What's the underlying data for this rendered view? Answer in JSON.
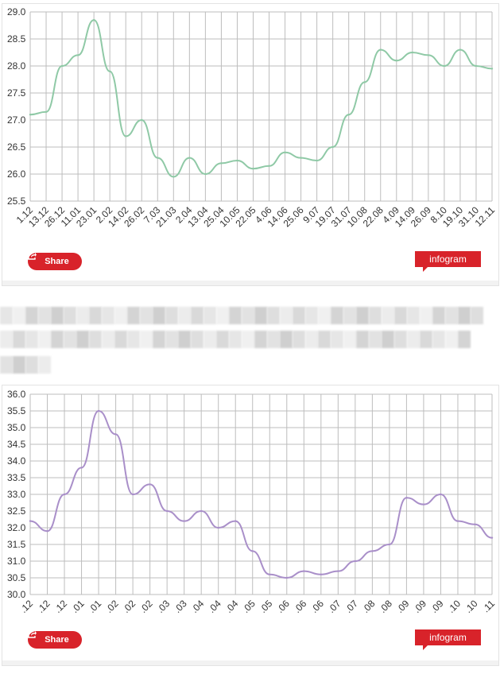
{
  "charts": [
    {
      "type": "line",
      "color": "#8fc9a6",
      "ylim": [
        25.5,
        29.0
      ],
      "yticks": [
        "29.0",
        "28.5",
        "28.0",
        "27.5",
        "27.0",
        "26.5",
        "26.0",
        "25.5"
      ],
      "categories": [
        "1.12",
        "13.12",
        "26.12",
        "11.01",
        "23.01",
        "2.02",
        "14.02",
        "26.02",
        "7.03",
        "21.03",
        "2.04",
        "13.04",
        "25.04",
        "10.05",
        "22.05",
        "4.06",
        "14.06",
        "25.06",
        "9.07",
        "19.07",
        "31.07",
        "10.08",
        "22.08",
        "4.09",
        "14.09",
        "26.09",
        "8.10",
        "19.10",
        "31.10",
        "12.11"
      ],
      "values": [
        27.1,
        27.15,
        28.0,
        28.2,
        28.85,
        27.9,
        26.7,
        27.0,
        26.3,
        25.95,
        26.3,
        26.0,
        26.2,
        26.25,
        26.1,
        26.15,
        26.4,
        26.3,
        26.25,
        26.5,
        27.1,
        27.7,
        28.3,
        28.1,
        28.25,
        28.2,
        28.0,
        28.3,
        28.0,
        27.95
      ],
      "share_label": "Share",
      "brand_label": "infogram"
    },
    {
      "type": "line",
      "color": "#a98fc9",
      "ylim": [
        30.0,
        36.0
      ],
      "yticks": [
        "36.0",
        "35.5",
        "35.0",
        "34.5",
        "34.0",
        "33.5",
        "33.0",
        "32.5",
        "32.0",
        "31.5",
        "31.0",
        "30.5",
        "30.0"
      ],
      "categories": [
        ".12",
        ".12",
        ".12",
        ".01",
        ".01",
        ".02",
        ".02",
        ".02",
        ".03",
        ".03",
        ".04",
        ".04",
        ".04",
        ".05",
        ".05",
        ".06",
        ".06",
        ".06",
        ".07",
        ".07",
        ".08",
        ".08",
        ".09",
        ".09",
        ".09",
        ".10",
        ".10",
        ".11"
      ],
      "values": [
        32.2,
        31.9,
        33.0,
        33.8,
        35.5,
        34.8,
        33.0,
        33.3,
        32.5,
        32.2,
        32.5,
        32.0,
        32.2,
        31.3,
        30.6,
        30.5,
        30.7,
        30.6,
        30.7,
        31.0,
        31.3,
        31.5,
        32.9,
        32.7,
        33.0,
        32.2,
        32.1,
        31.7
      ],
      "share_label": "Share",
      "brand_label": "infogram"
    }
  ]
}
